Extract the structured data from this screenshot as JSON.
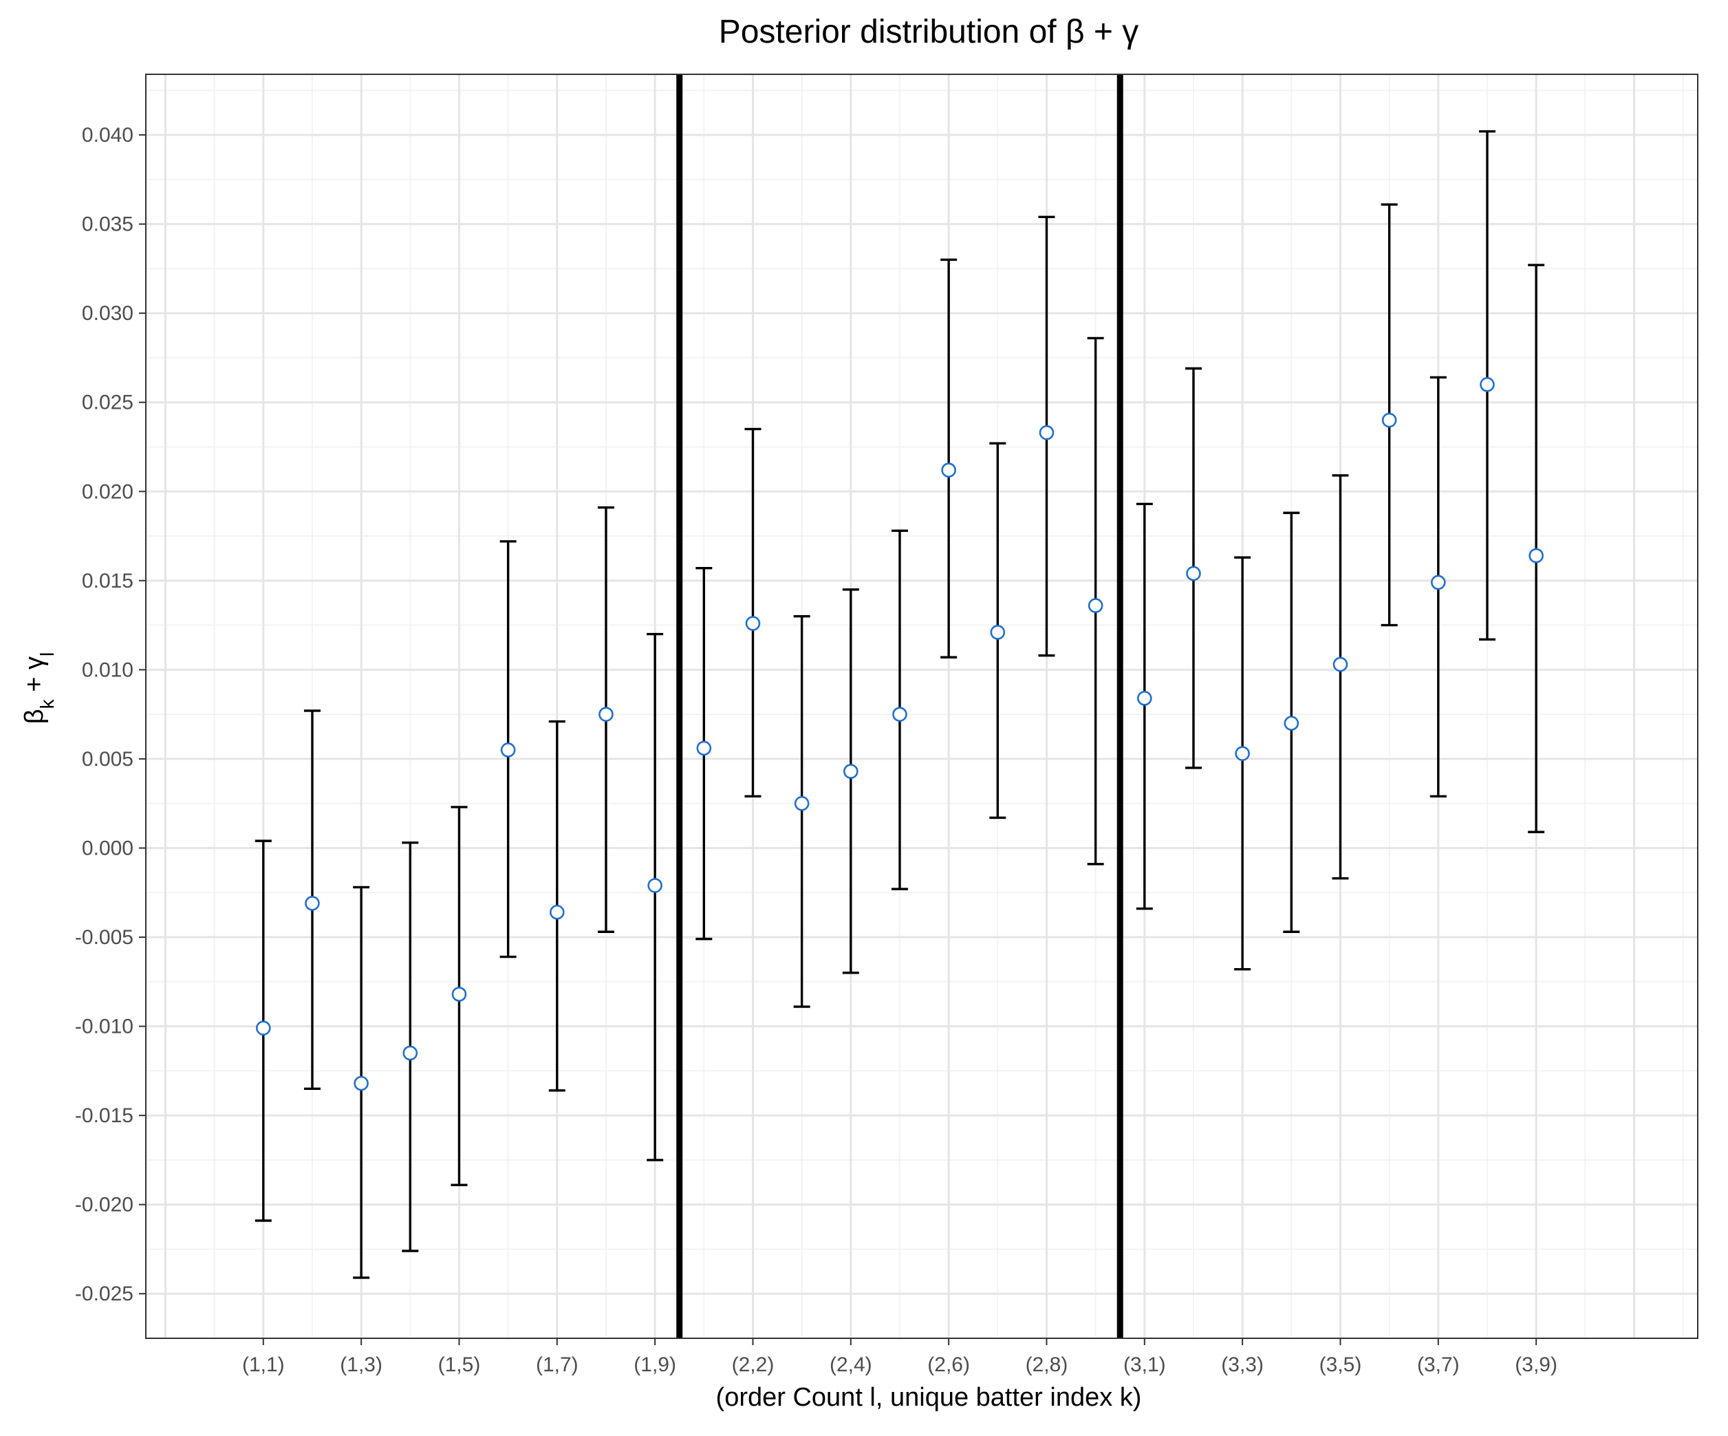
{
  "chart_data": {
    "type": "scatter",
    "title_prefix": "Posterior distribution of ",
    "title_math": "β + γ",
    "xlabel": "(order Count l, unique batter index k)",
    "ylabel_beta": "β",
    "ylabel_beta_sub": "k",
    "ylabel_plus": " + ",
    "ylabel_gamma": "γ",
    "ylabel_gamma_sub": "l",
    "ylim": [
      -0.0275,
      0.0434
    ],
    "yticks": [
      -0.025,
      -0.02,
      -0.015,
      -0.01,
      -0.005,
      0.0,
      0.005,
      0.01,
      0.015,
      0.02,
      0.025,
      0.03,
      0.035,
      0.04
    ],
    "ytick_labels": [
      "-0.025",
      "-0.020",
      "-0.015",
      "-0.010",
      "-0.005",
      "0.000",
      "0.005",
      "0.010",
      "0.015",
      "0.020",
      "0.025",
      "0.030",
      "0.035",
      "0.040"
    ],
    "categories": [
      "(1,1)",
      "(1,2)",
      "(1,3)",
      "(1,4)",
      "(1,5)",
      "(1,6)",
      "(1,7)",
      "(1,8)",
      "(1,9)",
      "(2,1)",
      "(2,2)",
      "(2,3)",
      "(2,4)",
      "(2,5)",
      "(2,6)",
      "(2,7)",
      "(2,8)",
      "(2,9)",
      "(3,1)",
      "(3,2)",
      "(3,3)",
      "(3,4)",
      "(3,5)",
      "(3,6)",
      "(3,7)",
      "(3,8)",
      "(3,9)"
    ],
    "xtick_labels": [
      "(1,1)",
      "(1,3)",
      "(1,5)",
      "(1,7)",
      "(1,9)",
      "(2,2)",
      "(2,4)",
      "(2,6)",
      "(2,8)",
      "(3,1)",
      "(3,3)",
      "(3,5)",
      "(3,7)",
      "(3,9)"
    ],
    "xtick_positions": [
      1,
      3,
      5,
      7,
      9,
      11,
      13,
      15,
      17,
      19,
      21,
      23,
      25,
      27
    ],
    "xlim": [
      -1.4,
      30.3
    ],
    "x": [
      1,
      2,
      3,
      4,
      5,
      6,
      7,
      8,
      9,
      10,
      11,
      12,
      13,
      14,
      15,
      16,
      17,
      18,
      19,
      20,
      21,
      22,
      23,
      24,
      25,
      26,
      27
    ],
    "mean": [
      -0.0101,
      -0.0031,
      -0.0132,
      -0.0115,
      -0.0082,
      0.0055,
      -0.0036,
      0.0075,
      -0.0021,
      0.0056,
      0.0126,
      0.0025,
      0.0043,
      0.0075,
      0.0212,
      0.0121,
      0.0233,
      0.0136,
      0.0084,
      0.0154,
      0.0053,
      0.007,
      0.0103,
      0.024,
      0.0149,
      0.026,
      0.0164
    ],
    "lower": [
      -0.0209,
      -0.0135,
      -0.0241,
      -0.0226,
      -0.0189,
      -0.0061,
      -0.0136,
      -0.0047,
      -0.0175,
      -0.0051,
      0.0029,
      -0.0089,
      -0.007,
      -0.0023,
      0.0107,
      0.0017,
      0.0108,
      -0.0009,
      -0.0034,
      0.0045,
      -0.0068,
      -0.0047,
      -0.0017,
      0.0125,
      0.0029,
      0.0117,
      0.0009
    ],
    "upper": [
      0.0004,
      0.0077,
      -0.0022,
      0.0003,
      0.0023,
      0.0172,
      0.0071,
      0.0191,
      0.012,
      0.0157,
      0.0235,
      0.013,
      0.0145,
      0.0178,
      0.033,
      0.0227,
      0.0354,
      0.0286,
      0.0193,
      0.0269,
      0.0163,
      0.0188,
      0.0209,
      0.0361,
      0.0264,
      0.0402,
      0.0327
    ],
    "vlines": [
      9.5,
      18.5
    ],
    "grid": true,
    "legend": "none",
    "colors": {
      "point_stroke": "#1f6fd1",
      "errbar": "#000000",
      "grid": "#e5e5e5",
      "vline": "#000000"
    }
  }
}
